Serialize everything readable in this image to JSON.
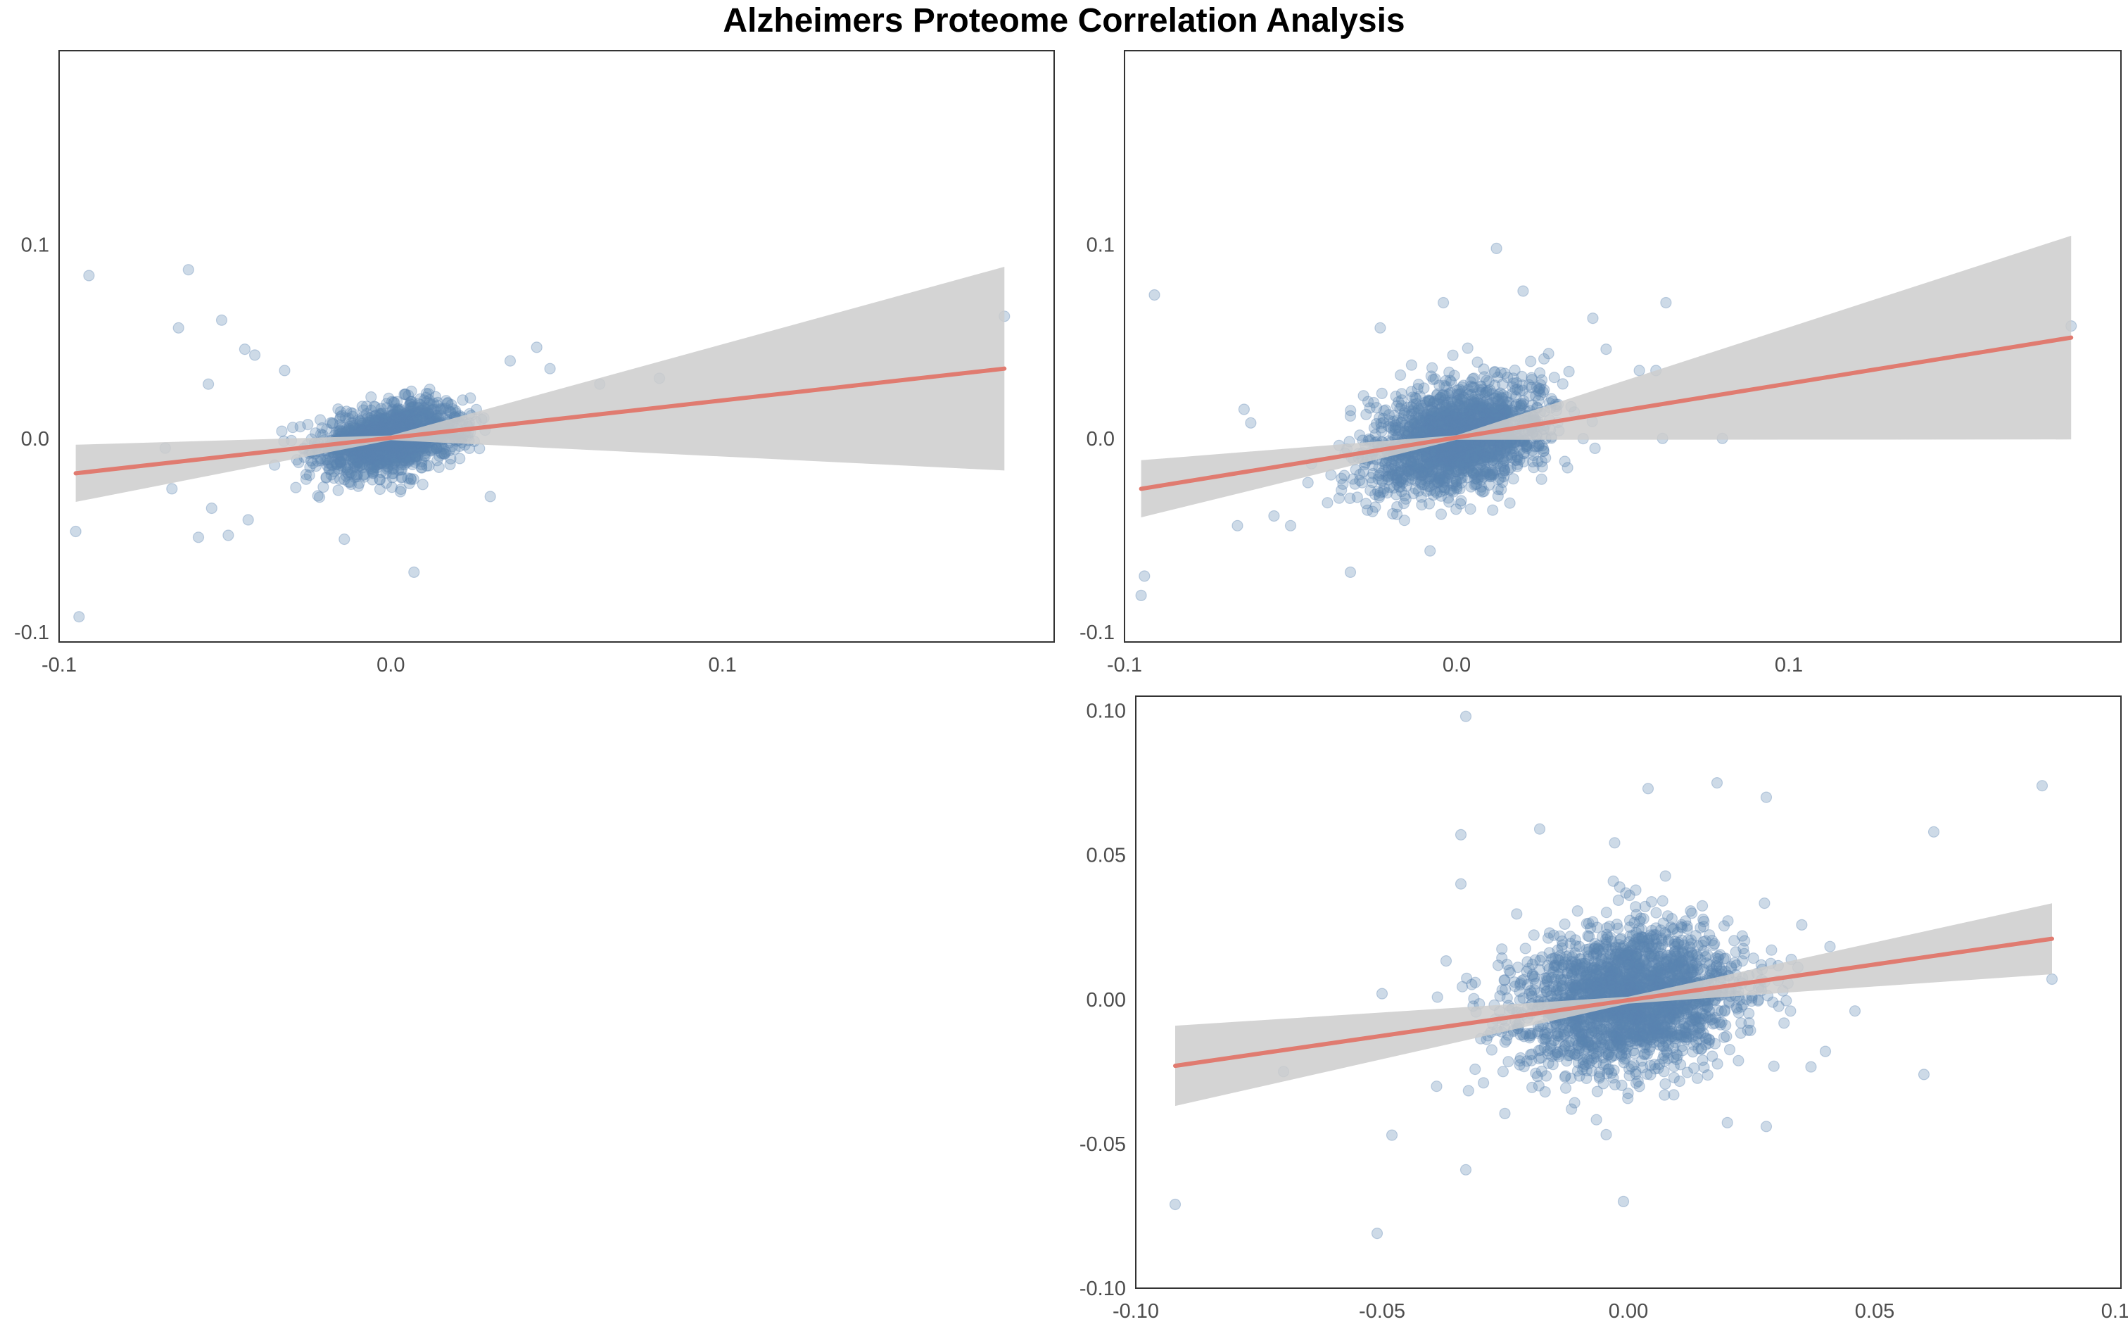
{
  "title": "Alzheimers Proteome Correlation Analysis",
  "colors": {
    "points": "#5b84b1",
    "fit_line": "#e07b70",
    "ci_band": "#cccccc",
    "frame": "#333333",
    "tick_text": "#4d4d4d"
  },
  "chart_data": [
    {
      "type": "scatter",
      "panel": "top-left",
      "title": "",
      "xlabel": "",
      "ylabel": "",
      "xlim": [
        -0.1,
        0.2
      ],
      "ylim": [
        -0.105,
        0.2
      ],
      "xticks": [
        -0.1,
        0.0,
        0.1
      ],
      "xtick_labels": [
        "-0.1",
        "0.0",
        "0.1"
      ],
      "yticks": [
        -0.1,
        0.0,
        0.1
      ],
      "ytick_labels": [
        "-0.1",
        "0.0",
        "0.1"
      ],
      "grid": false,
      "cluster": {
        "n": 1400,
        "x_center": 0.0,
        "y_center": 0.0,
        "x_sd": 0.011,
        "y_sd": 0.009,
        "correlation": 0.35
      },
      "outliers": [
        [
          -0.091,
          0.084
        ],
        [
          -0.061,
          0.087
        ],
        [
          -0.064,
          0.057
        ],
        [
          -0.051,
          0.061
        ],
        [
          -0.095,
          -0.048
        ],
        [
          -0.094,
          -0.092
        ],
        [
          -0.058,
          -0.051
        ],
        [
          -0.049,
          -0.05
        ],
        [
          -0.068,
          -0.005
        ],
        [
          -0.066,
          -0.026
        ],
        [
          -0.054,
          -0.036
        ],
        [
          -0.043,
          -0.042
        ],
        [
          -0.044,
          0.046
        ],
        [
          -0.041,
          0.043
        ],
        [
          -0.032,
          0.035
        ],
        [
          -0.055,
          0.028
        ],
        [
          0.007,
          -0.069
        ],
        [
          -0.014,
          -0.052
        ],
        [
          0.185,
          0.063
        ],
        [
          0.081,
          0.031
        ],
        [
          0.063,
          0.028
        ],
        [
          0.048,
          0.036
        ],
        [
          0.044,
          0.047
        ],
        [
          0.036,
          0.04
        ],
        [
          0.03,
          -0.03
        ]
      ],
      "fit": {
        "x": [
          -0.095,
          0.185
        ],
        "y": [
          -0.018,
          0.036
        ]
      }
    },
    {
      "type": "scatter",
      "panel": "top-right",
      "title": "",
      "xlabel": "",
      "ylabel": "",
      "xlim": [
        -0.1,
        0.2
      ],
      "ylim": [
        -0.105,
        0.2
      ],
      "xticks": [
        -0.1,
        0.0,
        0.1
      ],
      "xtick_labels": [
        "-0.1",
        "0.0",
        "0.1"
      ],
      "yticks": [
        -0.1,
        0.0,
        0.1
      ],
      "ytick_labels": [
        "-0.1",
        "0.0",
        "0.1"
      ],
      "grid": false,
      "cluster": {
        "n": 1800,
        "x_center": 0.0,
        "y_center": 0.0,
        "x_sd": 0.013,
        "y_sd": 0.014,
        "correlation": 0.3
      },
      "outliers": [
        [
          -0.091,
          0.074
        ],
        [
          -0.094,
          -0.071
        ],
        [
          -0.095,
          -0.081
        ],
        [
          -0.064,
          0.015
        ],
        [
          -0.062,
          0.008
        ],
        [
          -0.066,
          -0.045
        ],
        [
          -0.055,
          -0.04
        ],
        [
          -0.05,
          -0.045
        ],
        [
          -0.032,
          -0.069
        ],
        [
          -0.008,
          -0.058
        ],
        [
          0.012,
          0.098
        ],
        [
          0.02,
          0.076
        ],
        [
          0.041,
          0.062
        ],
        [
          0.063,
          0.07
        ],
        [
          0.06,
          0.035
        ],
        [
          0.055,
          0.035
        ],
        [
          0.062,
          0.0
        ],
        [
          0.08,
          0.0
        ],
        [
          0.185,
          0.058
        ],
        [
          -0.023,
          0.057
        ],
        [
          -0.004,
          0.07
        ],
        [
          0.045,
          0.046
        ]
      ],
      "fit": {
        "x": [
          -0.095,
          0.185
        ],
        "y": [
          -0.026,
          0.052
        ]
      }
    },
    {
      "type": "scatter",
      "panel": "bottom-right",
      "title": "",
      "xlabel": "",
      "ylabel": "",
      "xlim": [
        -0.1,
        0.1
      ],
      "ylim": [
        -0.1,
        0.105
      ],
      "xticks": [
        -0.1,
        -0.05,
        0.0,
        0.05,
        0.1
      ],
      "xtick_labels": [
        "-0.10",
        "-0.05",
        "0.00",
        "0.05",
        "0.10"
      ],
      "yticks": [
        -0.1,
        -0.05,
        0.0,
        0.05,
        0.1
      ],
      "ytick_labels": [
        "-0.10",
        "-0.05",
        "0.00",
        "0.05",
        "0.10"
      ],
      "grid": false,
      "cluster": {
        "n": 2200,
        "x_center": 0.0,
        "y_center": 0.0,
        "x_sd": 0.0115,
        "y_sd": 0.0125,
        "correlation": 0.15
      },
      "outliers": [
        [
          -0.033,
          0.098
        ],
        [
          -0.034,
          0.057
        ],
        [
          -0.034,
          0.04
        ],
        [
          -0.092,
          -0.071
        ],
        [
          -0.07,
          -0.025
        ],
        [
          -0.051,
          -0.081
        ],
        [
          -0.048,
          -0.047
        ],
        [
          -0.033,
          -0.059
        ],
        [
          -0.001,
          -0.07
        ],
        [
          0.084,
          0.074
        ],
        [
          0.062,
          0.058
        ],
        [
          0.086,
          0.007
        ],
        [
          0.06,
          -0.026
        ],
        [
          0.046,
          -0.004
        ],
        [
          0.04,
          -0.018
        ],
        [
          0.028,
          -0.044
        ],
        [
          -0.05,
          0.002
        ],
        [
          0.018,
          0.075
        ],
        [
          0.028,
          0.07
        ],
        [
          0.004,
          0.073
        ],
        [
          -0.018,
          0.059
        ]
      ],
      "fit": {
        "x": [
          -0.092,
          0.086
        ],
        "y": [
          -0.023,
          0.021
        ]
      }
    }
  ]
}
